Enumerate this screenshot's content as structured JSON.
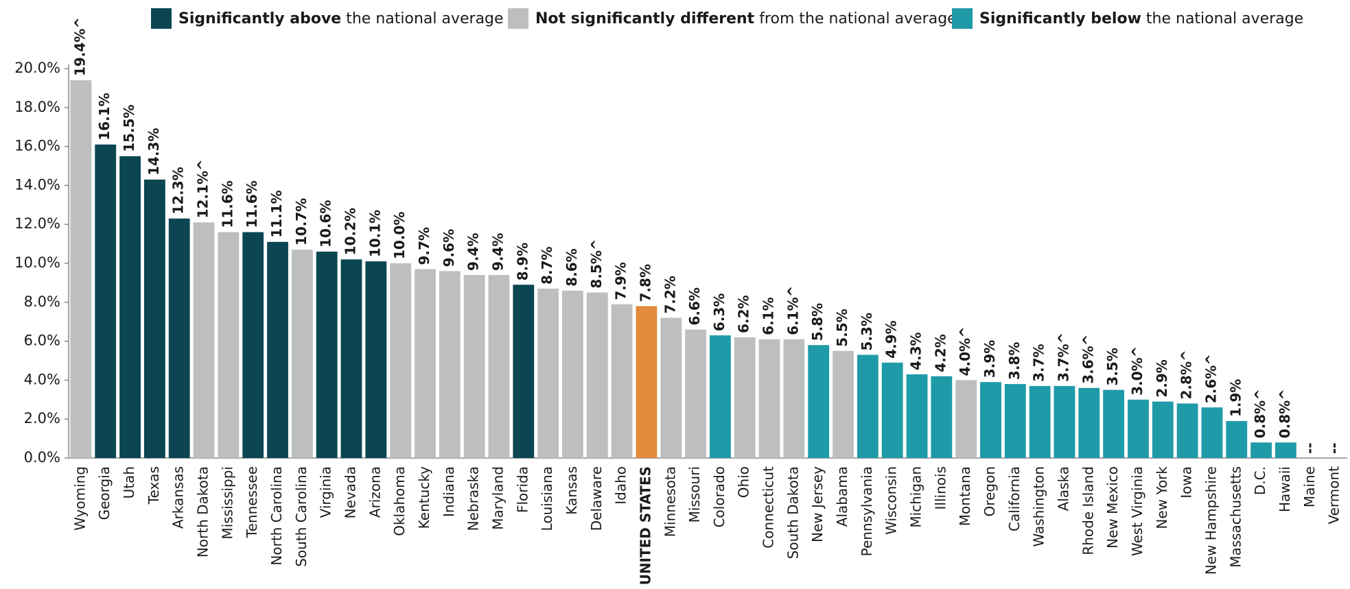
{
  "chart_data": {
    "type": "bar",
    "legend": [
      {
        "bold": "Significantly above",
        "text": "the national average",
        "color": "#0b4652"
      },
      {
        "bold": "Not significantly different",
        "text": "from the national average",
        "color": "#bcbec0"
      },
      {
        "bold": "Significantly below",
        "text": "the national average",
        "color": "#1f9aa8"
      }
    ],
    "categories": [
      "Wyoming",
      "Georgia",
      "Utah",
      "Texas",
      "Arkansas",
      "North Dakota",
      "Mississippi",
      "Tennessee",
      "North Carolina",
      "South Carolina",
      "Virginia",
      "Nevada",
      "Arizona",
      "Oklahoma",
      "Kentucky",
      "Indiana",
      "Nebraska",
      "Maryland",
      "Florida",
      "Louisiana",
      "Kansas",
      "Delaware",
      "Idaho",
      "UNITED STATES",
      "Minnesota",
      "Missouri",
      "Colorado",
      "Ohio",
      "Connecticut",
      "South Dakota",
      "New Jersey",
      "Alabama",
      "Pennsylvania",
      "Wisconsin",
      "Michigan",
      "Illinois",
      "Montana",
      "Oregon",
      "California",
      "Washington",
      "Alaska",
      "Rhode Island",
      "New Mexico",
      "West Virginia",
      "New York",
      "Iowa",
      "New Hampshire",
      "Massachusetts",
      "D.C.",
      "Hawaii",
      "Maine",
      "Vermont"
    ],
    "values": [
      19.4,
      16.1,
      15.5,
      14.3,
      12.3,
      12.1,
      11.6,
      11.6,
      11.1,
      10.7,
      10.6,
      10.2,
      10.1,
      10.0,
      9.7,
      9.6,
      9.4,
      9.4,
      8.9,
      8.7,
      8.6,
      8.5,
      7.9,
      7.8,
      7.2,
      6.6,
      6.3,
      6.2,
      6.1,
      6.1,
      5.8,
      5.5,
      5.3,
      4.9,
      4.3,
      4.2,
      4.0,
      3.9,
      3.8,
      3.7,
      3.7,
      3.6,
      3.5,
      3.0,
      2.9,
      2.8,
      2.6,
      1.9,
      0.8,
      0.8,
      null,
      null
    ],
    "value_labels": [
      "19.4%^",
      "16.1%",
      "15.5%",
      "14.3%",
      "12.3%",
      "12.1%^",
      "11.6%",
      "11.6%",
      "11.1%",
      "10.7%",
      "10.6%",
      "10.2%",
      "10.1%",
      "10.0%",
      "9.7%",
      "9.6%",
      "9.4%",
      "9.4%",
      "8.9%",
      "8.7%",
      "8.6%",
      "8.5%^",
      "7.9%",
      "7.8%",
      "7.2%",
      "6.6%",
      "6.3%",
      "6.2%",
      "6.1%",
      "6.1%^",
      "5.8%",
      "5.5%",
      "5.3%",
      "4.9%",
      "4.3%",
      "4.2%",
      "4.0%^",
      "3.9%",
      "3.8%",
      "3.7%",
      "3.7%^",
      "3.6%^",
      "3.5%",
      "3.0%^",
      "2.9%",
      "2.8%^",
      "2.6%^",
      "1.9%",
      "0.8%^",
      "0.8%^",
      "--",
      "--"
    ],
    "colors": [
      "#bcbec0",
      "#0b4652",
      "#0b4652",
      "#0b4652",
      "#0b4652",
      "#bcbec0",
      "#bcbec0",
      "#0b4652",
      "#0b4652",
      "#bcbec0",
      "#0b4652",
      "#0b4652",
      "#0b4652",
      "#bcbec0",
      "#bcbec0",
      "#bcbec0",
      "#bcbec0",
      "#bcbec0",
      "#0b4652",
      "#bcbec0",
      "#bcbec0",
      "#bcbec0",
      "#bcbec0",
      "#e38b3a",
      "#bcbec0",
      "#bcbec0",
      "#1f9aa8",
      "#bcbec0",
      "#bcbec0",
      "#bcbec0",
      "#1f9aa8",
      "#bcbec0",
      "#1f9aa8",
      "#1f9aa8",
      "#1f9aa8",
      "#1f9aa8",
      "#bcbec0",
      "#1f9aa8",
      "#1f9aa8",
      "#1f9aa8",
      "#1f9aa8",
      "#1f9aa8",
      "#1f9aa8",
      "#1f9aa8",
      "#1f9aa8",
      "#1f9aa8",
      "#1f9aa8",
      "#1f9aa8",
      "#1f9aa8",
      "#1f9aa8",
      "#1f9aa8",
      "#1f9aa8"
    ],
    "bold_category": "UNITED STATES",
    "ylim": [
      0,
      20
    ],
    "yticks": [
      {
        "value": 0,
        "label": "0.0%"
      },
      {
        "value": 2,
        "label": "2.0%"
      },
      {
        "value": 4,
        "label": "4.0%"
      },
      {
        "value": 6,
        "label": "6.0%"
      },
      {
        "value": 8,
        "label": "8.0%"
      },
      {
        "value": 10,
        "label": "10.0%"
      },
      {
        "value": 12,
        "label": "12.0%"
      },
      {
        "value": 14,
        "label": "14.0%"
      },
      {
        "value": 16,
        "label": "16.0%"
      },
      {
        "value": 18,
        "label": "18.0%"
      },
      {
        "value": 20,
        "label": "20.0%"
      }
    ],
    "grid": false
  }
}
